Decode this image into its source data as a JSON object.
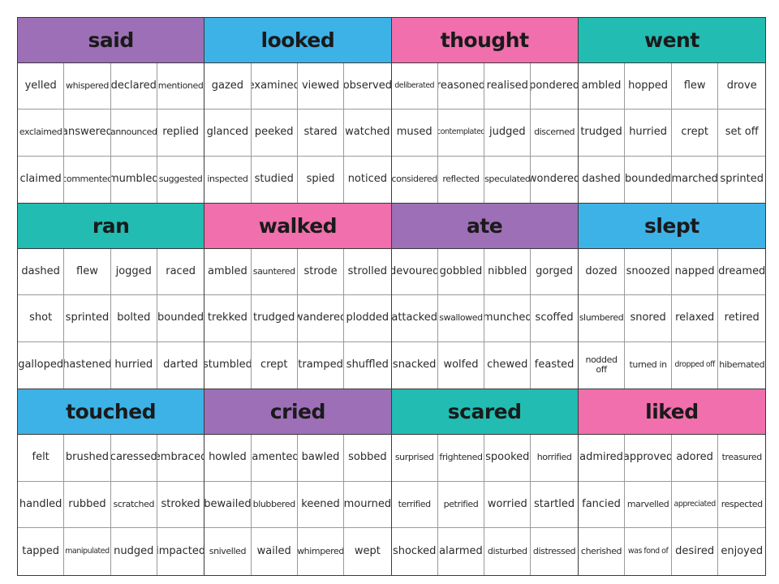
{
  "colors": {
    "purple": "#9d6fb6",
    "blue": "#3db2e6",
    "pink": "#f06fac",
    "teal": "#22bcb2"
  },
  "sections": [
    {
      "key": "said",
      "title": "said",
      "color": "#9d6fb6",
      "words": [
        "yelled",
        "whispered",
        "declared",
        "mentioned",
        "exclaimed",
        "answered",
        "announced",
        "replied",
        "claimed",
        "commented",
        "mumbled",
        "suggested"
      ]
    },
    {
      "key": "looked",
      "title": "looked",
      "color": "#3db2e6",
      "words": [
        "gazed",
        "examined",
        "viewed",
        "observed",
        "glanced",
        "peeked",
        "stared",
        "watched",
        "inspected",
        "studied",
        "spied",
        "noticed"
      ]
    },
    {
      "key": "thought",
      "title": "thought",
      "color": "#f06fac",
      "words": [
        "deliberated",
        "reasoned",
        "realised",
        "pondered",
        "mused",
        "contemplated",
        "judged",
        "discerned",
        "considered",
        "reflected",
        "speculated",
        "wondered"
      ]
    },
    {
      "key": "went",
      "title": "went",
      "color": "#22bcb2",
      "words": [
        "ambled",
        "hopped",
        "flew",
        "drove",
        "trudged",
        "hurried",
        "crept",
        "set off",
        "dashed",
        "bounded",
        "marched",
        "sprinted"
      ]
    },
    {
      "key": "ran",
      "title": "ran",
      "color": "#22bcb2",
      "words": [
        "dashed",
        "flew",
        "jogged",
        "raced",
        "shot",
        "sprinted",
        "bolted",
        "bounded",
        "galloped",
        "hastened",
        "hurried",
        "darted"
      ]
    },
    {
      "key": "walked",
      "title": "walked",
      "color": "#f06fac",
      "words": [
        "ambled",
        "sauntered",
        "strode",
        "strolled",
        "trekked",
        "trudged",
        "wandered",
        "plodded",
        "stumbled",
        "crept",
        "tramped",
        "shuffled"
      ]
    },
    {
      "key": "ate",
      "title": "ate",
      "color": "#9d6fb6",
      "words": [
        "devoured",
        "gobbled",
        "nibbled",
        "gorged",
        "attacked",
        "swallowed",
        "munched",
        "scoffed",
        "snacked",
        "wolfed",
        "chewed",
        "feasted"
      ]
    },
    {
      "key": "slept",
      "title": "slept",
      "color": "#3db2e6",
      "words": [
        "dozed",
        "snoozed",
        "napped",
        "dreamed",
        "slumbered",
        "snored",
        "relaxed",
        "retired",
        "nodded off",
        "turned in",
        "dropped off",
        "hibernated"
      ]
    },
    {
      "key": "touched",
      "title": "touched",
      "color": "#3db2e6",
      "words": [
        "felt",
        "brushed",
        "caressed",
        "embraced",
        "handled",
        "rubbed",
        "scratched",
        "stroked",
        "tapped",
        "manipulated",
        "nudged",
        "impacted"
      ]
    },
    {
      "key": "cried",
      "title": "cried",
      "color": "#9d6fb6",
      "words": [
        "howled",
        "lamented",
        "bawled",
        "sobbed",
        "bewailed",
        "blubbered",
        "keened",
        "mourned",
        "snivelled",
        "wailed",
        "whimpered",
        "wept"
      ]
    },
    {
      "key": "scared",
      "title": "scared",
      "color": "#22bcb2",
      "words": [
        "surprised",
        "frightened",
        "spooked",
        "horrified",
        "terrified",
        "petrified",
        "worried",
        "startled",
        "shocked",
        "alarmed",
        "disturbed",
        "distressed"
      ]
    },
    {
      "key": "liked",
      "title": "liked",
      "color": "#f06fac",
      "words": [
        "admired",
        "approved",
        "adored",
        "treasured",
        "fancied",
        "marvelled",
        "appreciated",
        "respected",
        "cherished",
        "was fond of",
        "desired",
        "enjoyed"
      ]
    }
  ]
}
